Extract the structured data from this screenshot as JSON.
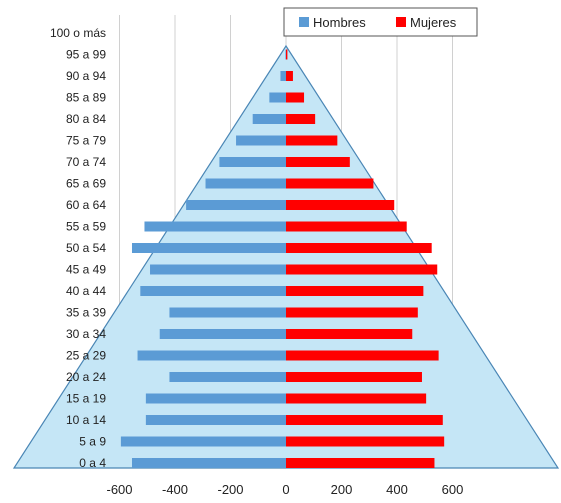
{
  "chart_data": {
    "type": "bar",
    "orientation": "horizontal",
    "categories": [
      "100 o más",
      "95 a 99",
      "90 a 94",
      "85 a 89",
      "80 a 84",
      "75 a 79",
      "70 a 74",
      "65 a 69",
      "60 a 64",
      "55 a 59",
      "50 a 54",
      "45 a 49",
      "40 a 44",
      "35 a 39",
      "30 a 34",
      "25 a 29",
      "20 a 24",
      "15 a 19",
      "10 a 14",
      "5 a 9",
      "0 a 4"
    ],
    "series": [
      {
        "name": "Hombres",
        "color": "#5b9bd5",
        "values": [
          0,
          -2,
          -20,
          -60,
          -120,
          -180,
          -240,
          -290,
          -360,
          -510,
          -555,
          -490,
          -525,
          -420,
          -455,
          -535,
          -420,
          -505,
          -505,
          -595,
          -555
        ]
      },
      {
        "name": "Mujeres",
        "color": "#ff0000",
        "values": [
          0,
          5,
          25,
          65,
          105,
          185,
          230,
          315,
          390,
          435,
          525,
          545,
          495,
          475,
          455,
          550,
          490,
          505,
          565,
          570,
          535
        ]
      }
    ],
    "x_ticks": [
      "-600",
      "-400",
      "-200",
      "0",
      "200",
      "400",
      "600"
    ],
    "x_tick_values": [
      -600,
      -400,
      -200,
      0,
      200,
      400,
      600
    ],
    "xlim": [
      -1000,
      1000
    ],
    "grid": "vertical",
    "legend_position": "top-right",
    "background_shape": "triangle",
    "background_color": "#c5e6f6",
    "background_stroke": "#4a86b5"
  }
}
